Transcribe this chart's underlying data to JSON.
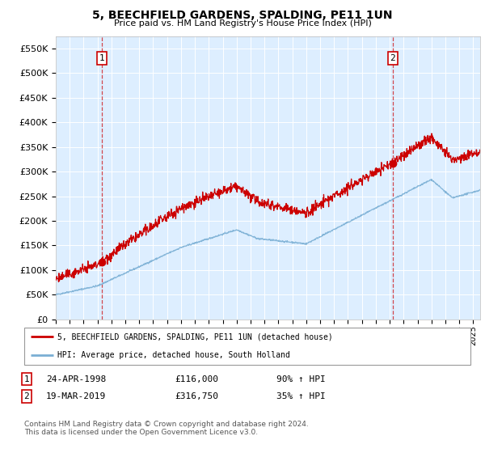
{
  "title": "5, BEECHFIELD GARDENS, SPALDING, PE11 1UN",
  "subtitle": "Price paid vs. HM Land Registry's House Price Index (HPI)",
  "ylim": [
    0,
    575000
  ],
  "yticks": [
    0,
    50000,
    100000,
    150000,
    200000,
    250000,
    300000,
    350000,
    400000,
    450000,
    500000,
    550000
  ],
  "ytick_labels": [
    "£0",
    "£50K",
    "£100K",
    "£150K",
    "£200K",
    "£250K",
    "£300K",
    "£350K",
    "£400K",
    "£450K",
    "£500K",
    "£550K"
  ],
  "xlim_start": 1995.0,
  "xlim_end": 2025.5,
  "sale1_date": 1998.31,
  "sale1_price": 116000,
  "sale1_label": "1",
  "sale2_date": 2019.21,
  "sale2_price": 316750,
  "sale2_label": "2",
  "legend_line1": "5, BEECHFIELD GARDENS, SPALDING, PE11 1UN (detached house)",
  "legend_line2": "HPI: Average price, detached house, South Holland",
  "note1_label": "1",
  "note1_date": "24-APR-1998",
  "note1_price": "£116,000",
  "note1_pct": "90% ↑ HPI",
  "note2_label": "2",
  "note2_date": "19-MAR-2019",
  "note2_price": "£316,750",
  "note2_pct": "35% ↑ HPI",
  "footer": "Contains HM Land Registry data © Crown copyright and database right 2024.\nThis data is licensed under the Open Government Licence v3.0.",
  "red_color": "#cc0000",
  "blue_color": "#7aafd4",
  "bg_color": "#ddeeff",
  "grid_color": "#ffffff"
}
